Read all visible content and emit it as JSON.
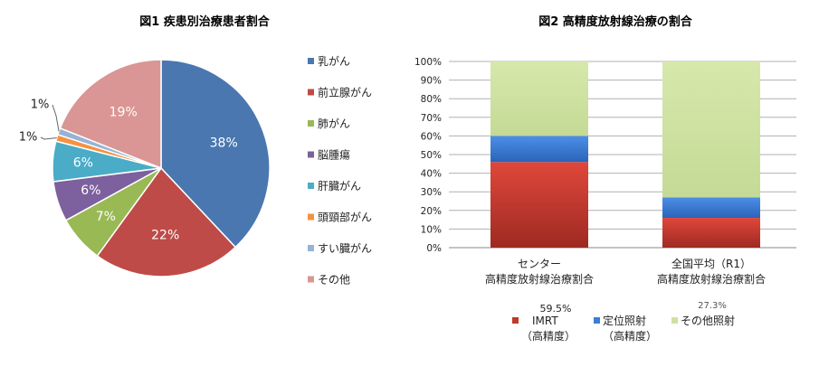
{
  "chart_data": [
    {
      "type": "pie",
      "title": "図1 疾患別治療患者割合",
      "categories": [
        "乳がん",
        "前立腺がん",
        "肺がん",
        "脳腫瘍",
        "肝臓がん",
        "頭頸部がん",
        "すい臓がん",
        "その他"
      ],
      "values": [
        38,
        22,
        7,
        6,
        6,
        1,
        1,
        19
      ],
      "data_labels": [
        "38%",
        "22%",
        "7%",
        "6%",
        "6%",
        "1%",
        "1%",
        "19%"
      ],
      "colors": [
        "#4a77b0",
        "#be4b48",
        "#98b954",
        "#7d609e",
        "#4aacc6",
        "#f59240",
        "#95b3d8",
        "#da9694"
      ],
      "legend_position": "right"
    },
    {
      "type": "bar",
      "stacked": true,
      "title": "図2 高精度放射線治療の割合",
      "categories": [
        "センター\n高精度放射線治療割合",
        "全国平均（R1）\n高精度放射線治療割合"
      ],
      "series": [
        {
          "name": "IMRT\n（高精度）",
          "values": [
            46,
            16
          ],
          "color": "#c0392b"
        },
        {
          "name": "定位照射\n（高精度）",
          "values": [
            14,
            11
          ],
          "color": "#3c7dd9"
        },
        {
          "name": "その他照射",
          "values": [
            40,
            73
          ],
          "color": "#cfe1a2"
        }
      ],
      "ylim": [
        0,
        100
      ],
      "yticks": [
        "0%",
        "10%",
        "20%",
        "30%",
        "40%",
        "50%",
        "60%",
        "70%",
        "80%",
        "90%",
        "100%"
      ],
      "grid": true,
      "annotations": [
        "59.5%",
        "27.3%"
      ],
      "legend_position": "bottom"
    }
  ]
}
